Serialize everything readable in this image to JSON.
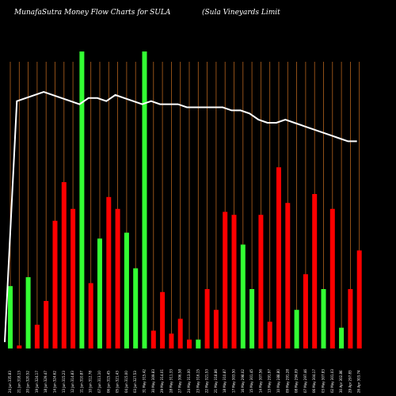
{
  "header": {
    "left_title": "MunafaSutra  Money Flow  Charts for SULA",
    "right_title": "(Sula  Vineyards Limit"
  },
  "chart_data": {
    "type": "bar",
    "title": "MunafaSutra  Money Flow  Charts for SULA",
    "subtitle": "(Sula  Vineyards Limit",
    "colors": {
      "background": "#000000",
      "gridline": "#b3621d",
      "up_bar": "#33ff33",
      "down_bar": "#ff0000",
      "price_line": "#ffffff"
    },
    "volume_max": 100,
    "bars": [
      {
        "label": "24 Jun 335.83 ",
        "value": 21,
        "color": "green"
      },
      {
        "label": "21 Jun 318.13 ",
        "value": 1,
        "color": "red"
      },
      {
        "label": "20 Jun 320.52 ",
        "value": 24,
        "color": "green"
      },
      {
        "label": "19 Jun 324.17 ",
        "value": 8,
        "color": "red"
      },
      {
        "label": "18 Jun 329.47 ",
        "value": 16,
        "color": "red"
      },
      {
        "label": "14 Jun 324.62 ",
        "value": 43,
        "color": "red"
      },
      {
        "label": "13 Jun 315.23 ",
        "value": 56,
        "color": "red"
      },
      {
        "label": "12 Jun 314.83 ",
        "value": 47,
        "color": "red"
      },
      {
        "label": "11 Jun 310.87 ",
        "value": 100,
        "color": "green"
      },
      {
        "label": "10 Jun 312.78 ",
        "value": 22,
        "color": "red"
      },
      {
        "label": "07 Jun 313.10 ",
        "value": 37,
        "color": "green"
      },
      {
        "label": "06 Jun 315.45 ",
        "value": 51,
        "color": "red"
      },
      {
        "label": "05 Jun 321.43 ",
        "value": 47,
        "color": "red"
      },
      {
        "label": "04 Jun 315.00 ",
        "value": 39,
        "color": "green"
      },
      {
        "label": "03 Jun 327.53 ",
        "value": 27,
        "color": "green"
      },
      {
        "label": "31 May 315.42 ",
        "value": 100,
        "color": "green"
      },
      {
        "label": "30 May 309.83 ",
        "value": 6,
        "color": "red"
      },
      {
        "label": "29 May 314.01 ",
        "value": 19,
        "color": "red"
      },
      {
        "label": "28 May 311.33 ",
        "value": 5,
        "color": "red"
      },
      {
        "label": "27 May 306.58 ",
        "value": 10,
        "color": "red"
      },
      {
        "label": "24 May 313.00 ",
        "value": 3,
        "color": "red"
      },
      {
        "label": "23 May 316.15 ",
        "value": 3,
        "color": "green"
      },
      {
        "label": "22 May 321.53 ",
        "value": 20,
        "color": "red"
      },
      {
        "label": "21 May 318.86 ",
        "value": 13,
        "color": "red"
      },
      {
        "label": "18 May 310.87 ",
        "value": 46,
        "color": "red"
      },
      {
        "label": "17 May 303.50 ",
        "value": 45,
        "color": "red"
      },
      {
        "label": "16 May 298.02 ",
        "value": 35,
        "color": "green"
      },
      {
        "label": "15 May 301.45 ",
        "value": 20,
        "color": "green"
      },
      {
        "label": "14 May 307.56 ",
        "value": 45,
        "color": "red"
      },
      {
        "label": "13 May 291.97 ",
        "value": 9,
        "color": "red"
      },
      {
        "label": "10 May 288.80 ",
        "value": 61,
        "color": "red"
      },
      {
        "label": "09 May 291.28 ",
        "value": 49,
        "color": "red"
      },
      {
        "label": "08 May 294.09 ",
        "value": 13,
        "color": "green"
      },
      {
        "label": "07 May 297.46 ",
        "value": 25,
        "color": "red"
      },
      {
        "label": "06 May 304.17 ",
        "value": 52,
        "color": "red"
      },
      {
        "label": "03 May 307.83 ",
        "value": 20,
        "color": "green"
      },
      {
        "label": "02 May 301.03 ",
        "value": 47,
        "color": "red"
      },
      {
        "label": "30 Apr 302.86 ",
        "value": 7,
        "color": "green"
      },
      {
        "label": "29 Apr 297.83 ",
        "value": 20,
        "color": "red"
      },
      {
        "label": "26 Apr 303.74 ",
        "value": 33,
        "color": "red"
      }
    ],
    "price_line": [
      5,
      83,
      84,
      85,
      86,
      85,
      84,
      83,
      82,
      84,
      84,
      83,
      85,
      84,
      83,
      82,
      83,
      82,
      82,
      82,
      81,
      81,
      81,
      81,
      81,
      80,
      80,
      79,
      77,
      76,
      76,
      77,
      76,
      75,
      74,
      73,
      72,
      71,
      70,
      70
    ]
  }
}
